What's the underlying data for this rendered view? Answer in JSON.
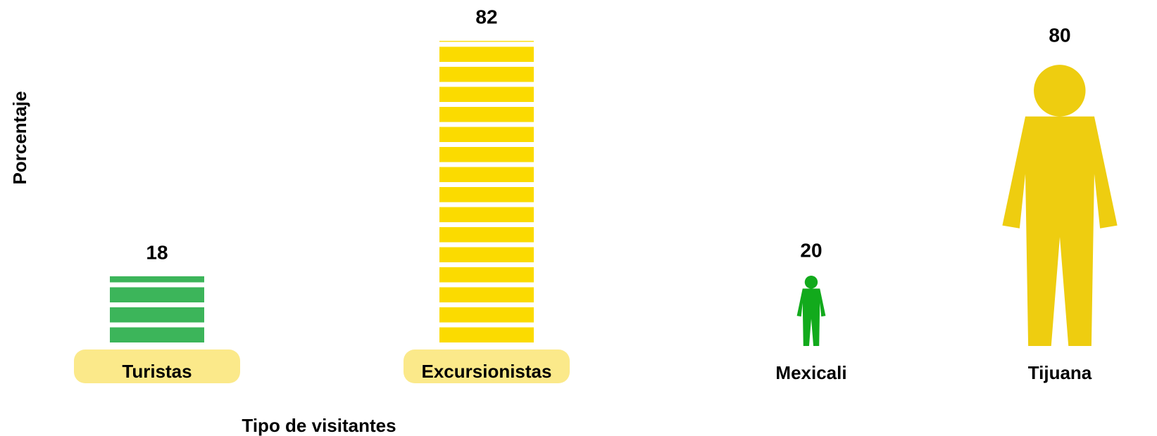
{
  "chart_data": [
    {
      "type": "bar",
      "categories": [
        "Turistas",
        "Excursionistas"
      ],
      "values": [
        18,
        82
      ],
      "colors": [
        "#3cb55a",
        "#fbdb00"
      ],
      "ylabel": "Porcentaje",
      "xlabel": "Tipo de visitantes"
    },
    {
      "type": "pictograph",
      "categories": [
        "Mexicali",
        "Tijuana"
      ],
      "values": [
        20,
        80
      ],
      "colors": [
        "#12aa1c",
        "#eecd10"
      ]
    }
  ]
}
